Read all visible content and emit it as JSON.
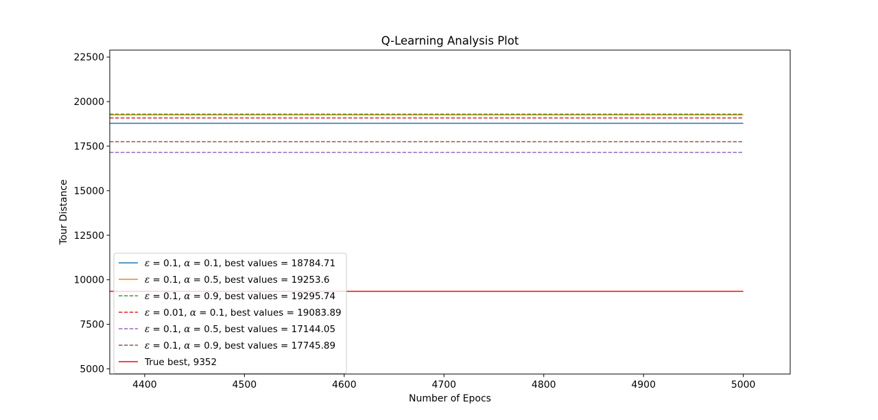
{
  "chart_data": {
    "type": "line",
    "title": "Q-Learning Analysis Plot",
    "xlabel": "Number of Epocs",
    "ylabel": "Tour Distance",
    "xlim": [
      4365,
      5047
    ],
    "ylim": [
      4710,
      22890
    ],
    "xticks": [
      4400,
      4500,
      4600,
      4700,
      4800,
      4900,
      5000
    ],
    "yticks": [
      5000,
      7500,
      10000,
      12500,
      15000,
      17500,
      20000,
      22500
    ],
    "grid": false,
    "legend_position": "lower-left",
    "x": [
      4365,
      5000
    ],
    "series": [
      {
        "name": "ε = 0.1, α = 0.1, best values = 18784.71",
        "eps": "0.1",
        "alpha": "0.1",
        "text": ", best values = 18784.71",
        "value": 18784.71,
        "color": "#1f77b4",
        "dash": "solid"
      },
      {
        "name": "ε = 0.1, α = 0.5, best values = 19253.6",
        "eps": "0.1",
        "alpha": "0.5",
        "text": ", best values = 19253.6",
        "value": 19253.6,
        "color": "#ff7f0e",
        "dash": "solid"
      },
      {
        "name": "ε = 0.1, α = 0.9, best values = 19295.74",
        "eps": "0.1",
        "alpha": "0.9",
        "text": ", best values = 19295.74",
        "value": 19295.74,
        "color": "#2ca02c",
        "dash": "dashed"
      },
      {
        "name": "ε = 0.01, α = 0.1, best values = 19083.89",
        "eps": "0.01",
        "alpha": "0.1",
        "text": ", best values = 19083.89",
        "value": 19083.89,
        "color": "#d62728",
        "dash": "dashed"
      },
      {
        "name": "ε = 0.1, α = 0.5, best values = 17144.05",
        "eps": "0.1",
        "alpha": "0.5",
        "text": ", best values = 17144.05",
        "value": 17144.05,
        "color": "#9467bd",
        "dash": "dashed"
      },
      {
        "name": "ε = 0.1, α = 0.9, best values = 17745.89",
        "eps": "0.1",
        "alpha": "0.9",
        "text": ", best values = 17745.89",
        "value": 17745.89,
        "color": "#8c564b",
        "dash": "dashed"
      },
      {
        "name": "True best, 9352",
        "text": "True best, 9352",
        "value": 9352,
        "color": "#ff0000",
        "dash": "solid"
      }
    ]
  }
}
